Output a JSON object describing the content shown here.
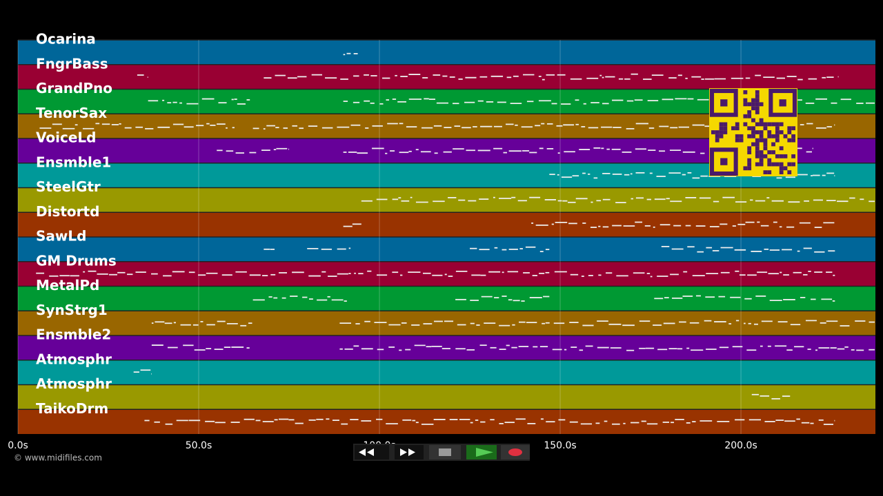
{
  "tracks": [
    {
      "name": "Ocarina",
      "color": "#006699"
    },
    {
      "name": "FngrBass",
      "color": "#990033"
    },
    {
      "name": "GrandPno",
      "color": "#009933"
    },
    {
      "name": "TenorSax",
      "color": "#996600"
    },
    {
      "name": "VoiceLd",
      "color": "#660099"
    },
    {
      "name": "Ensmble1",
      "color": "#009999"
    },
    {
      "name": "SteelGtr",
      "color": "#999900"
    },
    {
      "name": "Distortd",
      "color": "#993300"
    },
    {
      "name": "SawLd",
      "color": "#006699"
    },
    {
      "name": "GM Drums",
      "color": "#990033"
    },
    {
      "name": "MetalPd",
      "color": "#009933"
    },
    {
      "name": "SynStrg1",
      "color": "#996600"
    },
    {
      "name": "Ensmble2",
      "color": "#660099"
    },
    {
      "name": "Atmosphr",
      "color": "#009999"
    },
    {
      "name": "Atmosphr",
      "color": "#999900"
    },
    {
      "name": "TaikoDrm",
      "color": "#993300"
    }
  ],
  "time_axis": {
    "xlim": [
      0,
      237.2
    ],
    "ticks": [
      {
        "value": 0,
        "label": "0.0s"
      },
      {
        "value": 50,
        "label": "50.0s"
      },
      {
        "value": 100,
        "label": "100.0s"
      },
      {
        "value": 150,
        "label": "150.0s"
      },
      {
        "value": 200,
        "label": "200.0s"
      }
    ]
  },
  "footer": {
    "copyright": "© www.midifiles.com"
  }
}
